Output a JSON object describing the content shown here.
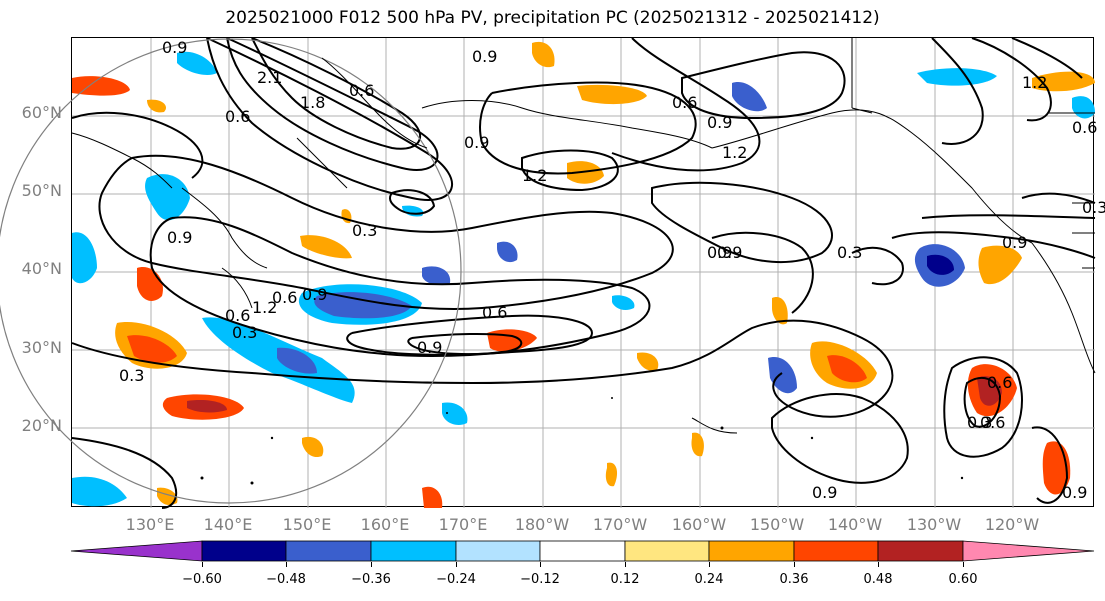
{
  "title": "2025021000 F012 500 hPa PV, precipitation PC (2025021312 - 2025021412)",
  "map": {
    "lat_labels": [
      "60°N",
      "50°N",
      "40°N",
      "30°N",
      "20°N"
    ],
    "lon_labels": [
      "130°E",
      "140°E",
      "150°E",
      "160°E",
      "170°E",
      "180°W",
      "170°W",
      "160°W",
      "150°W",
      "140°W",
      "130°W",
      "120°W"
    ],
    "contour_labels": [
      "0.9",
      "0.6",
      "2.1",
      "1.8",
      "0.9",
      "0.6",
      "0.9",
      "1.2",
      "0.3",
      "0.9",
      "0.6",
      "0.3",
      "0.6",
      "0.9",
      "0.6",
      "0.9",
      "1.2",
      "0.6",
      "0.9",
      "0.9",
      "1.2",
      "0.3",
      "0.3",
      "0.9",
      "0.6",
      "0.3",
      "0.9",
      "0.6",
      "0.3",
      "1.2",
      "0.9",
      "0.9",
      "0.6"
    ],
    "colors": {
      "contour": "#000000",
      "grid": "#b0b0b0",
      "circle": "#808080",
      "label": "#808080"
    }
  },
  "colorbar": {
    "ticks": [
      "−0.60",
      "−0.48",
      "−0.36",
      "−0.24",
      "−0.12",
      "0.12",
      "0.24",
      "0.36",
      "0.48",
      "0.60"
    ],
    "bins": [
      {
        "color": "#9932cc"
      },
      {
        "color": "#00008b"
      },
      {
        "color": "#3a5fcd"
      },
      {
        "color": "#00bfff"
      },
      {
        "color": "#b2e2ff"
      },
      {
        "color": "#ffffff"
      },
      {
        "color": "#ffe680"
      },
      {
        "color": "#ffa500"
      },
      {
        "color": "#ff4500"
      },
      {
        "color": "#b22222"
      },
      {
        "color": "#ff88b0"
      }
    ]
  }
}
